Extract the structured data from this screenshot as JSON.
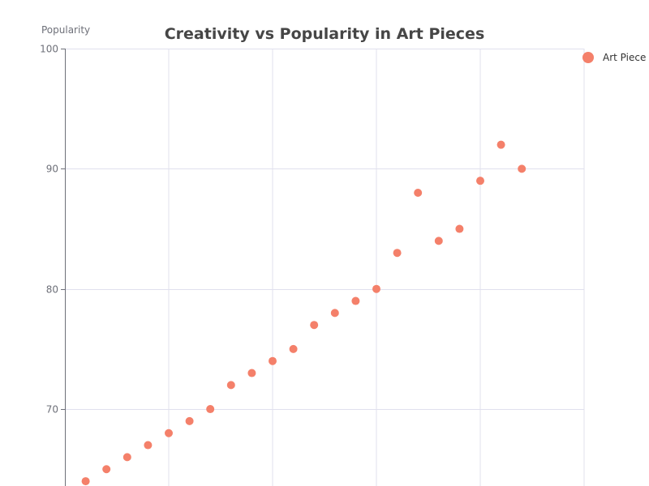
{
  "chart_data": {
    "type": "scatter",
    "title": "Creativity vs Popularity in Art Pieces",
    "xlabel": "",
    "ylabel": "Popularity",
    "grid": true,
    "legend_position": "top-right",
    "ylim": [
      63.6,
      100
    ],
    "xlim": [
      44,
      94
    ],
    "y_ticks": [
      70,
      80,
      90,
      100
    ],
    "series": [
      {
        "name": "Art Piece",
        "color": "#f4806a",
        "x": [
          46,
          48,
          50,
          52,
          54,
          56,
          58,
          60,
          62,
          64,
          66,
          68,
          70,
          72,
          74,
          76,
          78,
          80,
          82,
          84,
          86,
          88
        ],
        "y": [
          64,
          65,
          66,
          67,
          68,
          69,
          70,
          72,
          73,
          74,
          75,
          77,
          78,
          79,
          80,
          83,
          88,
          84,
          85,
          89,
          92,
          90
        ],
        "extra_points": []
      }
    ]
  }
}
